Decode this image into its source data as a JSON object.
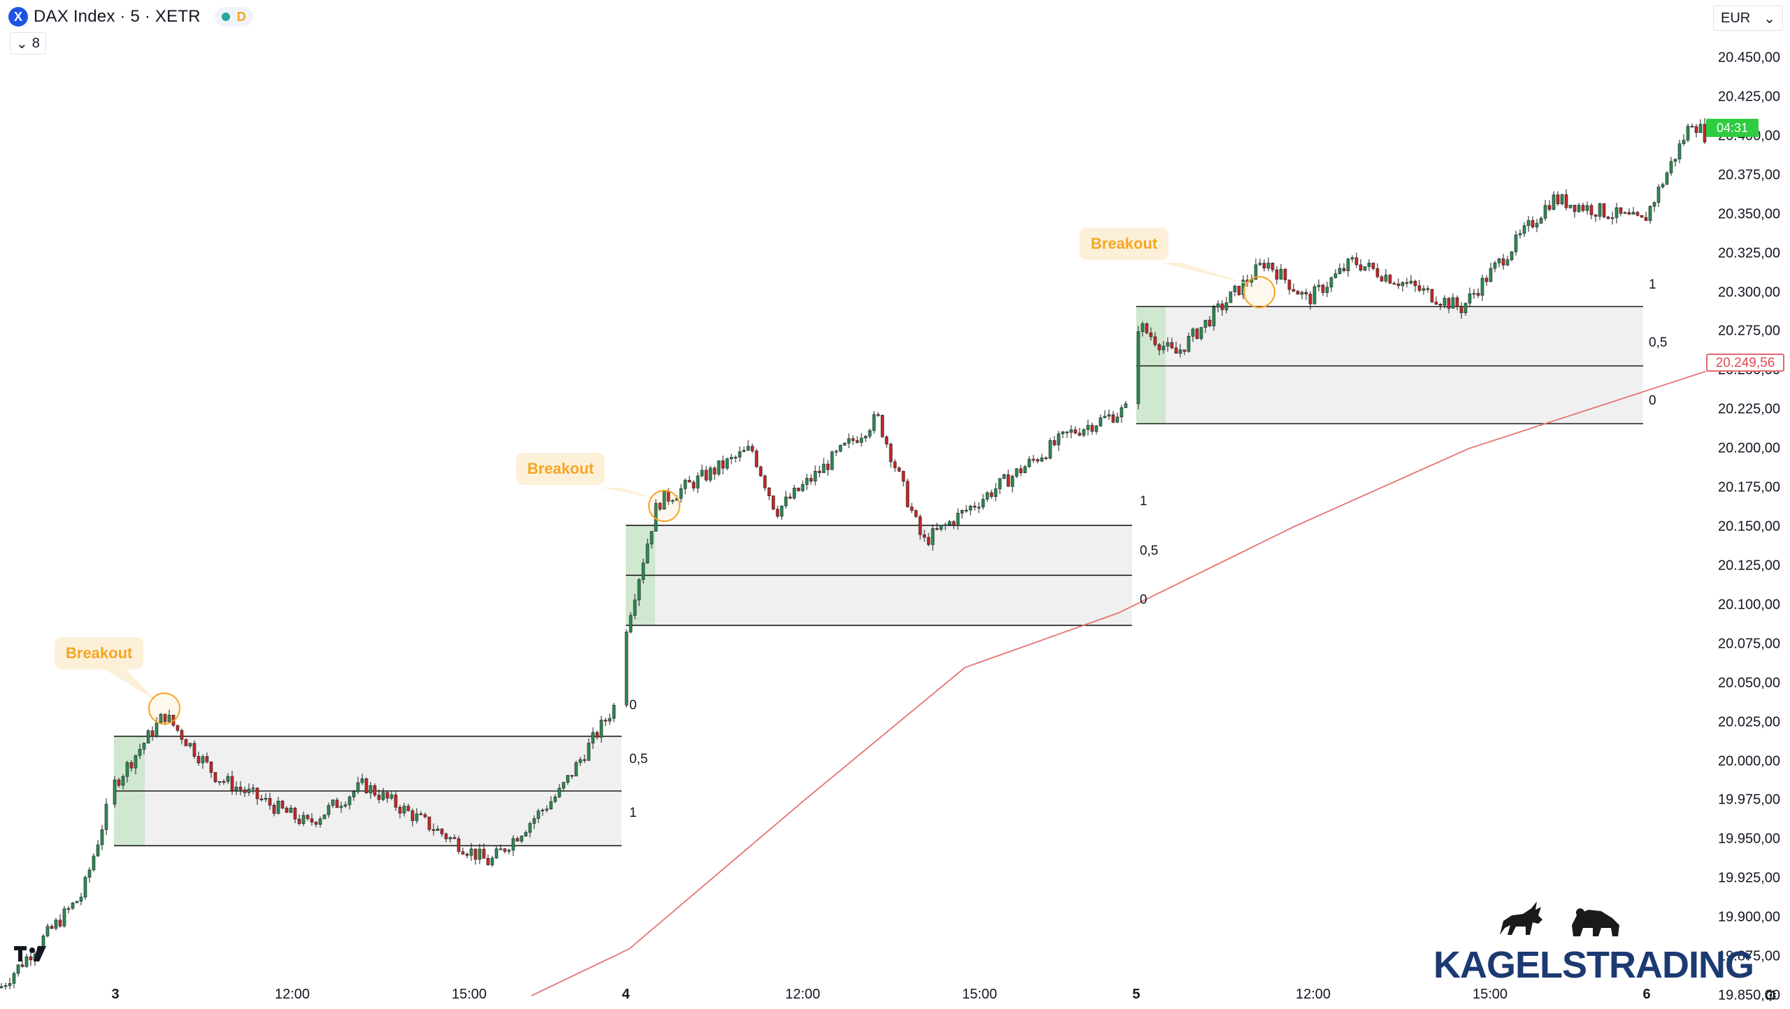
{
  "header": {
    "symbol_logo": "X",
    "title": "DAX Index · 5 · XETR",
    "status_badge": "D",
    "indicator_toggle_icon": "chevron-down-icon",
    "indicator_count": "8"
  },
  "currency": {
    "label": "EUR",
    "icon": "chevron-down-icon"
  },
  "price_axis": {
    "labels": [
      "20.450,00",
      "20.425,00",
      "20.400,00",
      "20.375,00",
      "20.350,00",
      "20.325,00",
      "20.300,00",
      "20.275,00",
      "20.250,00",
      "20.225,00",
      "20.200,00",
      "20.175,00",
      "20.150,00",
      "20.125,00",
      "20.100,00",
      "20.075,00",
      "20.050,00",
      "20.025,00",
      "20.000,00",
      "19.975,00",
      "19.950,00",
      "19.925,00",
      "19.900,00",
      "19.875,00",
      "19.850,00"
    ],
    "countdown": "04:31",
    "ma_price": "20.249,56"
  },
  "time_axis": {
    "labels": [
      "3",
      "12:00",
      "15:00",
      "4",
      "12:00",
      "15:00",
      "5",
      "12:00",
      "15:00",
      "6"
    ]
  },
  "breakouts": [
    {
      "label": "Breakout"
    },
    {
      "label": "Breakout"
    },
    {
      "label": "Breakout"
    }
  ],
  "ranges": [
    {
      "levels": [
        "0",
        "0,5",
        "1"
      ]
    },
    {
      "levels": [
        "1",
        "0,5",
        "0"
      ]
    },
    {
      "levels": [
        "1",
        "0,5",
        "0"
      ]
    }
  ],
  "brand": {
    "name": "KAGELSTRADING",
    "tv_logo": "tradingview-logo-icon"
  },
  "colors": {
    "up": "#2e8b57",
    "down": "#c62828",
    "ma": "#e57373",
    "range_fill": "#f0f0f0",
    "opening_fill": "#cfe8cf",
    "breakout": "#f5a623"
  },
  "chart_data": {
    "type": "candlestick",
    "title": "DAX Index · 5 · XETR",
    "ylim": [
      19850,
      20460
    ],
    "x_labels": [
      "3",
      "12:00",
      "15:00",
      "4",
      "12:00",
      "15:00",
      "5",
      "12:00",
      "15:00",
      "6"
    ],
    "series": [
      {
        "name": "price",
        "key_points": [
          {
            "day": "2",
            "close": 19855
          },
          {
            "day": "2",
            "close": 19915
          },
          {
            "day": "3",
            "open": 19950,
            "close": 19985
          },
          {
            "day": "3",
            "close": 20030
          },
          {
            "day": "3",
            "close": 19990
          },
          {
            "day": "3",
            "close": 19960
          },
          {
            "day": "3",
            "close": 19985
          },
          {
            "day": "3",
            "close": 19935
          },
          {
            "day": "3",
            "close": 19980
          },
          {
            "day": "3",
            "close": 20035
          },
          {
            "day": "4",
            "open": 20110,
            "close": 20085
          },
          {
            "day": "4",
            "close": 20165
          },
          {
            "day": "4",
            "close": 20200
          },
          {
            "day": "4",
            "close": 20160
          },
          {
            "day": "4",
            "close": 20220
          },
          {
            "day": "4",
            "close": 20140
          },
          {
            "day": "4",
            "close": 20210
          },
          {
            "day": "4",
            "close": 20225
          },
          {
            "day": "5",
            "open": 20250,
            "close": 20280
          },
          {
            "day": "5",
            "close": 20260
          },
          {
            "day": "5",
            "close": 20320
          },
          {
            "day": "5",
            "close": 20295
          },
          {
            "day": "5",
            "close": 20320
          },
          {
            "day": "5",
            "close": 20290
          },
          {
            "day": "5",
            "close": 20360
          },
          {
            "day": "5",
            "close": 20345
          },
          {
            "day": "6",
            "close": 20410
          },
          {
            "day": "6",
            "close": 20400
          }
        ]
      },
      {
        "name": "MA",
        "values": [
          19850,
          19880,
          19975,
          20060,
          20095,
          20150,
          20200,
          20249.56
        ]
      }
    ],
    "ranges": [
      {
        "day": "3",
        "high": 20016,
        "mid": 19981,
        "low": 19946
      },
      {
        "day": "4",
        "high": 20151,
        "mid": 20119,
        "low": 20087
      },
      {
        "day": "5",
        "high": 20291,
        "mid": 20253,
        "low": 20216
      }
    ]
  }
}
